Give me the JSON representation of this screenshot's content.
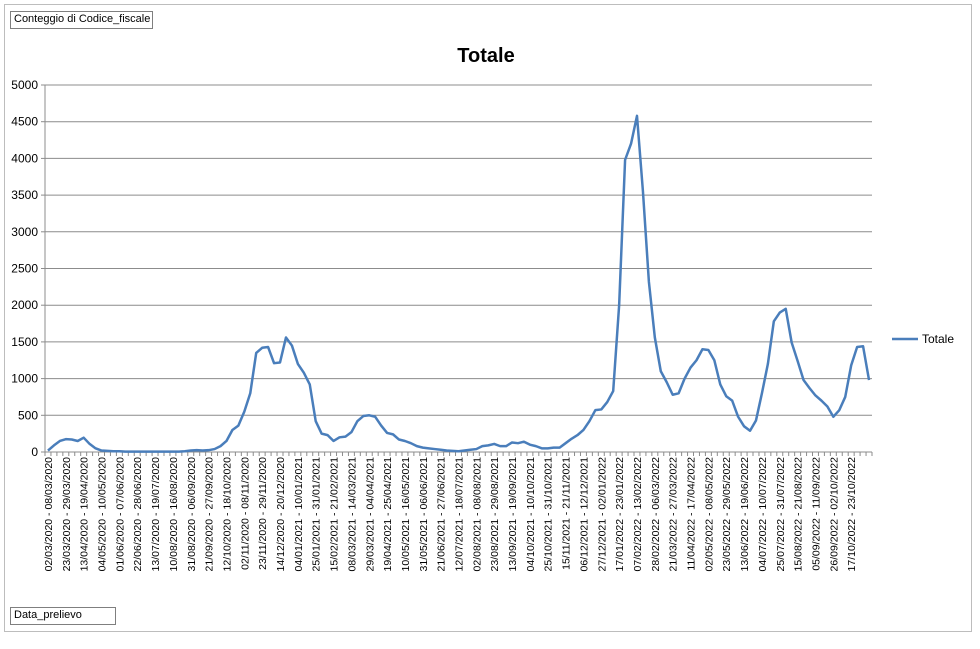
{
  "pivot": {
    "value_field_label": "Conteggio di Codice_fiscale",
    "row_field_label": "Data_prelievo"
  },
  "chart_data": {
    "type": "line",
    "title": "Totale",
    "xlabel": "",
    "ylabel": "",
    "ylim": [
      0,
      5000
    ],
    "yticks": [
      0,
      500,
      1000,
      1500,
      2000,
      2500,
      3000,
      3500,
      4000,
      4500,
      5000
    ],
    "grid": true,
    "legend": "right",
    "line_color": "#4a7ebb",
    "series": [
      {
        "name": "Totale",
        "values": [
          20,
          90,
          150,
          175,
          170,
          150,
          195,
          110,
          50,
          20,
          15,
          10,
          10,
          5,
          5,
          5,
          5,
          5,
          5,
          5,
          5,
          5,
          5,
          10,
          20,
          25,
          20,
          25,
          40,
          80,
          150,
          300,
          360,
          550,
          800,
          1350,
          1420,
          1430,
          1210,
          1220,
          1560,
          1450,
          1200,
          1080,
          920,
          420,
          250,
          230,
          150,
          200,
          210,
          270,
          420,
          490,
          500,
          480,
          360,
          260,
          240,
          170,
          150,
          120,
          80,
          60,
          50,
          40,
          30,
          20,
          15,
          10,
          20,
          30,
          40,
          80,
          90,
          110,
          80,
          80,
          130,
          120,
          140,
          100,
          80,
          50,
          50,
          60,
          60,
          120,
          180,
          230,
          300,
          420,
          570,
          580,
          680,
          830,
          2000,
          3980,
          4200,
          4580,
          3550,
          2320,
          1560,
          1100,
          950,
          780,
          800,
          1000,
          1150,
          1250,
          1400,
          1390,
          1250,
          920,
          760,
          700,
          480,
          350,
          290,
          430,
          800,
          1200,
          1780,
          1900,
          1950,
          1490,
          1240,
          980,
          870,
          770,
          700,
          620,
          480,
          570,
          750,
          1180,
          1430,
          1440,
          980
        ]
      }
    ],
    "x_tick_labels": [
      "02/03/2020 - 08/03/2020",
      "23/03/2020 - 29/03/2020",
      "13/04/2020 - 19/04/2020",
      "04/05/2020 - 10/05/2020",
      "01/06/2020 - 07/06/2020",
      "22/06/2020 - 28/06/2020",
      "13/07/2020 - 19/07/2020",
      "10/08/2020 - 16/08/2020",
      "31/08/2020 - 06/09/2020",
      "21/09/2020 - 27/09/2020",
      "12/10/2020 - 18/10/2020",
      "02/11/2020 - 08/11/2020",
      "23/11/2020 - 29/11/2020",
      "14/12/2020 - 20/12/2020",
      "04/01/2021 - 10/01/2021",
      "25/01/2021 - 31/01/2021",
      "15/02/2021 - 21/02/2021",
      "08/03/2021 - 14/03/2021",
      "29/03/2021 - 04/04/2021",
      "19/04/2021 - 25/04/2021",
      "10/05/2021 - 16/05/2021",
      "31/05/2021 - 06/06/2021",
      "21/06/2021 - 27/06/2021",
      "12/07/2021 - 18/07/2021",
      "02/08/2021 - 08/08/2021",
      "23/08/2021 - 29/08/2021",
      "13/09/2021 - 19/09/2021",
      "04/10/2021 - 10/10/2021",
      "25/10/2021 - 31/10/2021",
      "15/11/2021 - 21/11/2021",
      "06/12/2021 - 12/12/2021",
      "27/12/2021 - 02/01/2022",
      "17/01/2022 - 23/01/2022",
      "07/02/2022 - 13/02/2022",
      "28/02/2022 - 06/03/2022",
      "21/03/2022 - 27/03/2022",
      "11/04/2022 - 17/04/2022",
      "02/05/2022 - 08/05/2022",
      "23/05/2022 - 29/05/2022",
      "13/06/2022 - 19/06/2022",
      "04/07/2022 - 10/07/2022",
      "25/07/2022 - 31/07/2022",
      "15/08/2022 - 21/08/2022",
      "05/09/2022 - 11/09/2022",
      "26/09/2022 - 02/10/2022",
      "17/10/2022 - 23/10/2022"
    ]
  }
}
